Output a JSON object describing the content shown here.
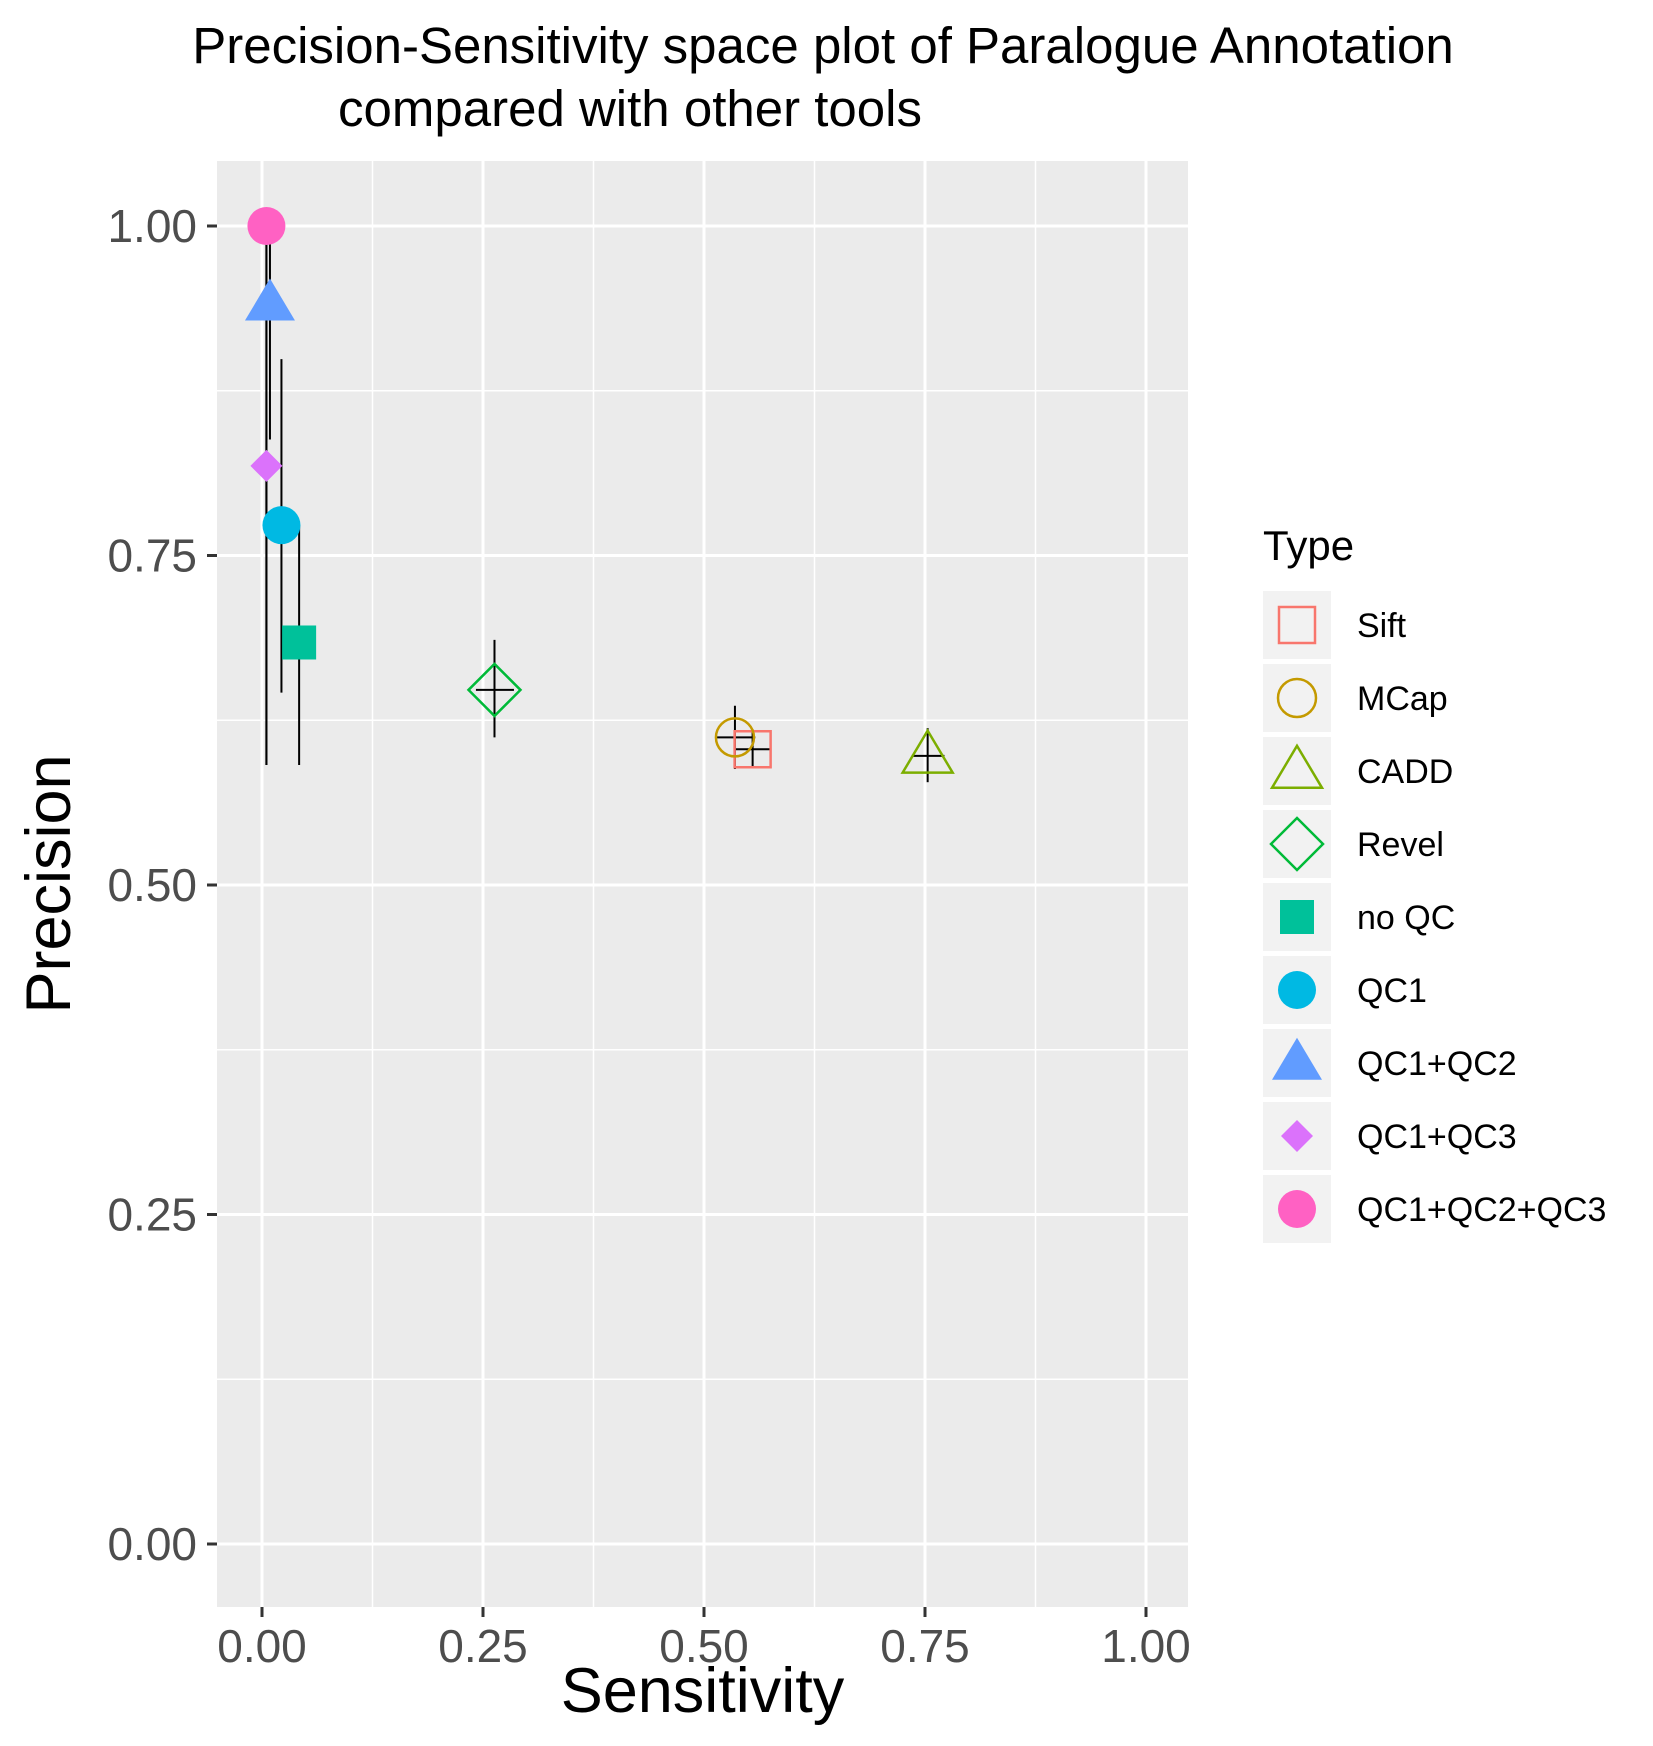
{
  "chart_data": {
    "type": "scatter",
    "title_lines": [
      "Precision-Sensitivity space plot of Paralogue Annotation",
      "compared with other tools"
    ],
    "xlabel": "Sensitivity",
    "ylabel": "Precision",
    "xlim": [
      -0.05,
      1.05
    ],
    "ylim": [
      -0.05,
      1.05
    ],
    "xticks": [
      0,
      0.25,
      0.5,
      0.75,
      1
    ],
    "xtick_labels": [
      "0.00",
      "0.25",
      "0.50",
      "0.75",
      "1.00"
    ],
    "yticks": [
      0,
      0.25,
      0.5,
      0.75,
      1
    ],
    "ytick_labels": [
      "0.00",
      "0.25",
      "0.50",
      "0.75",
      "1.00"
    ],
    "grid": true,
    "legend_title": "Type",
    "legend_position": "right",
    "series": [
      {
        "name": "Sift",
        "shape": "square-open",
        "color": "#F8766D",
        "x": 0.555,
        "y": 0.603,
        "xerr": [
          0.535,
          0.575
        ],
        "yerr": [
          0.59,
          0.618
        ]
      },
      {
        "name": "MCap",
        "shape": "circle-open",
        "color": "#C49A00",
        "x": 0.535,
        "y": 0.612,
        "xerr": [
          0.513,
          0.558
        ],
        "yerr": [
          0.588,
          0.636
        ]
      },
      {
        "name": "CADD",
        "shape": "triangle-open",
        "color": "#53B400",
        "x": 0.753,
        "y": 0.598,
        "xerr": [
          0.735,
          0.772
        ],
        "yerr": [
          0.578,
          0.619
        ]
      },
      {
        "name": "Revel",
        "shape": "diamond-open",
        "color": "#00C094",
        "x": 0.263,
        "y": 0.648,
        "xerr": [
          0.242,
          0.285
        ],
        "yerr": [
          0.612,
          0.686
        ]
      },
      {
        "name": "no QC",
        "shape": "square",
        "color": "#00C094",
        "x": 0.042,
        "y": 0.684,
        "xerr": [
          0.032,
          0.052
        ],
        "yerr": [
          0.591,
          0.773
        ]
      },
      {
        "name": "QC1",
        "shape": "circle",
        "color": "#00B6EB",
        "x": 0.022,
        "y": 0.773,
        "xerr": [
          0.015,
          0.03
        ],
        "yerr": [
          0.646,
          0.899
        ]
      },
      {
        "name": "QC1+QC2",
        "shape": "triangle",
        "color": "#619CFF",
        "x": 0.009,
        "y": 0.941,
        "xerr": [
          0.004,
          0.016
        ],
        "yerr": [
          0.838,
          1.0
        ]
      },
      {
        "name": "QC1+QC3",
        "shape": "diamond",
        "color": "#DB72FB",
        "x": 0.005,
        "y": 0.818,
        "xerr": [
          0.001,
          0.011
        ],
        "yerr": [
          0.591,
          1.0
        ]
      },
      {
        "name": "QC1+QC2+QC3",
        "shape": "circle",
        "color": "#FF61C3",
        "x": 0.005,
        "y": 1.0,
        "xerr": [
          0.001,
          0.012
        ],
        "yerr": [
          0.591,
          1.0
        ]
      }
    ]
  },
  "legend_order": [
    "Sift",
    "MCap",
    "CADD",
    "Revel",
    "no QC",
    "QC1",
    "QC1+QC2",
    "QC1+QC3",
    "QC1+QC2+QC3"
  ],
  "legend_colors": {
    "Sift": "#F8766D",
    "MCap": "#C49A00",
    "CADD": "#7CAE00",
    "Revel": "#00BA38",
    "no QC": "#00C19A",
    "QC1": "#00B9E3",
    "QC1+QC2": "#619CFF",
    "QC1+QC3": "#DB72FB",
    "QC1+QC2+QC3": "#FF61C3"
  },
  "panel_background": "#EBEBEB",
  "grid_color": "#FFFFFF"
}
